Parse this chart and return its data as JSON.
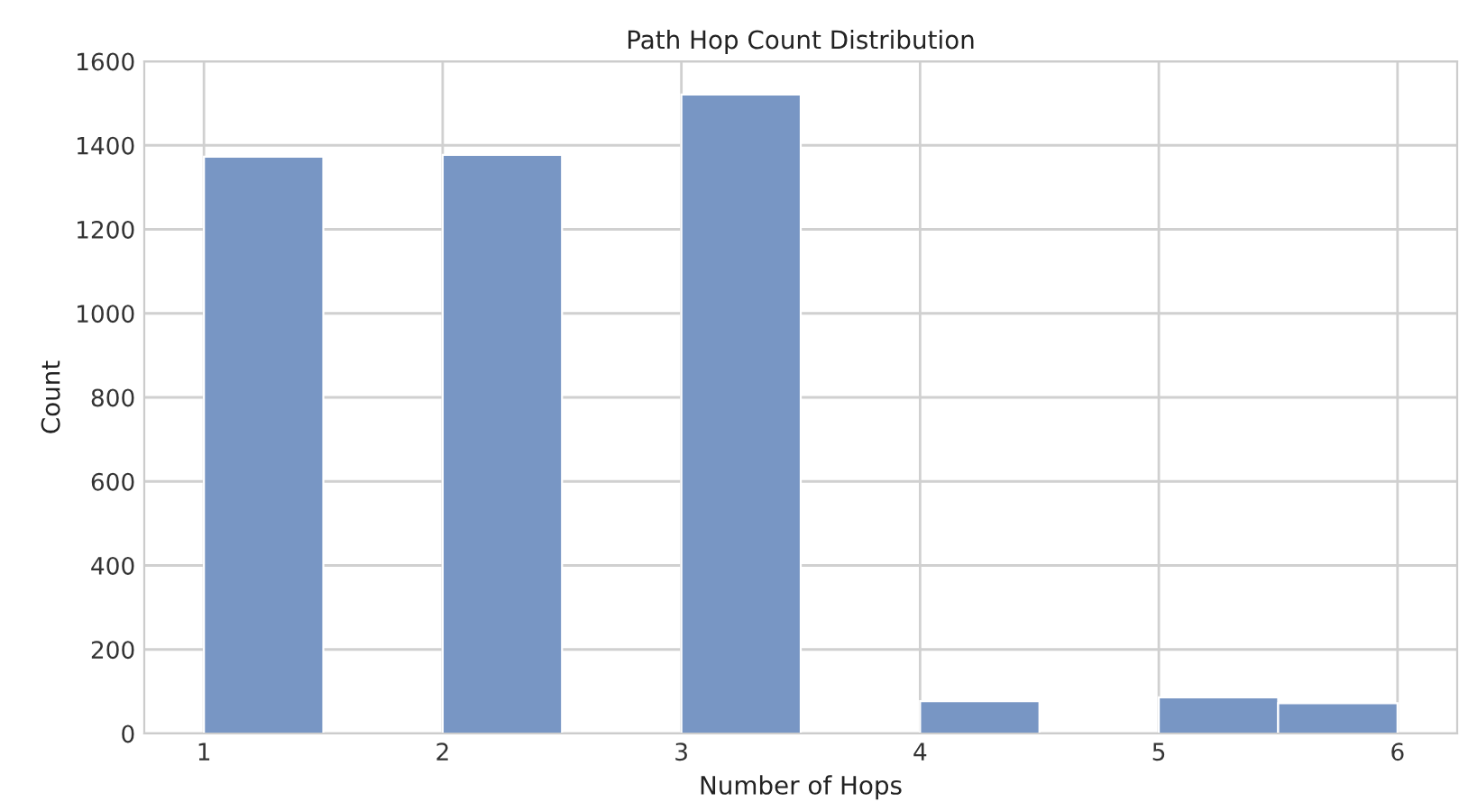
{
  "chart_data": {
    "type": "histogram",
    "title": "Path Hop Count Distribution",
    "xlabel": "Number of Hops",
    "ylabel": "Count",
    "bins": [
      1,
      1.5,
      2,
      2.5,
      3,
      3.5,
      4,
      4.5,
      5,
      5.5,
      6
    ],
    "values": [
      1373,
      0,
      1377,
      0,
      1521,
      0,
      77,
      0,
      86,
      72
    ],
    "color": "#7896c4",
    "xlim": [
      0.75,
      6.25
    ],
    "ylim": [
      0,
      1600
    ],
    "xticks": [
      1,
      2,
      3,
      4,
      5,
      6
    ],
    "yticks": [
      0,
      200,
      400,
      600,
      800,
      1000,
      1200,
      1400,
      1600
    ],
    "grid": true
  }
}
